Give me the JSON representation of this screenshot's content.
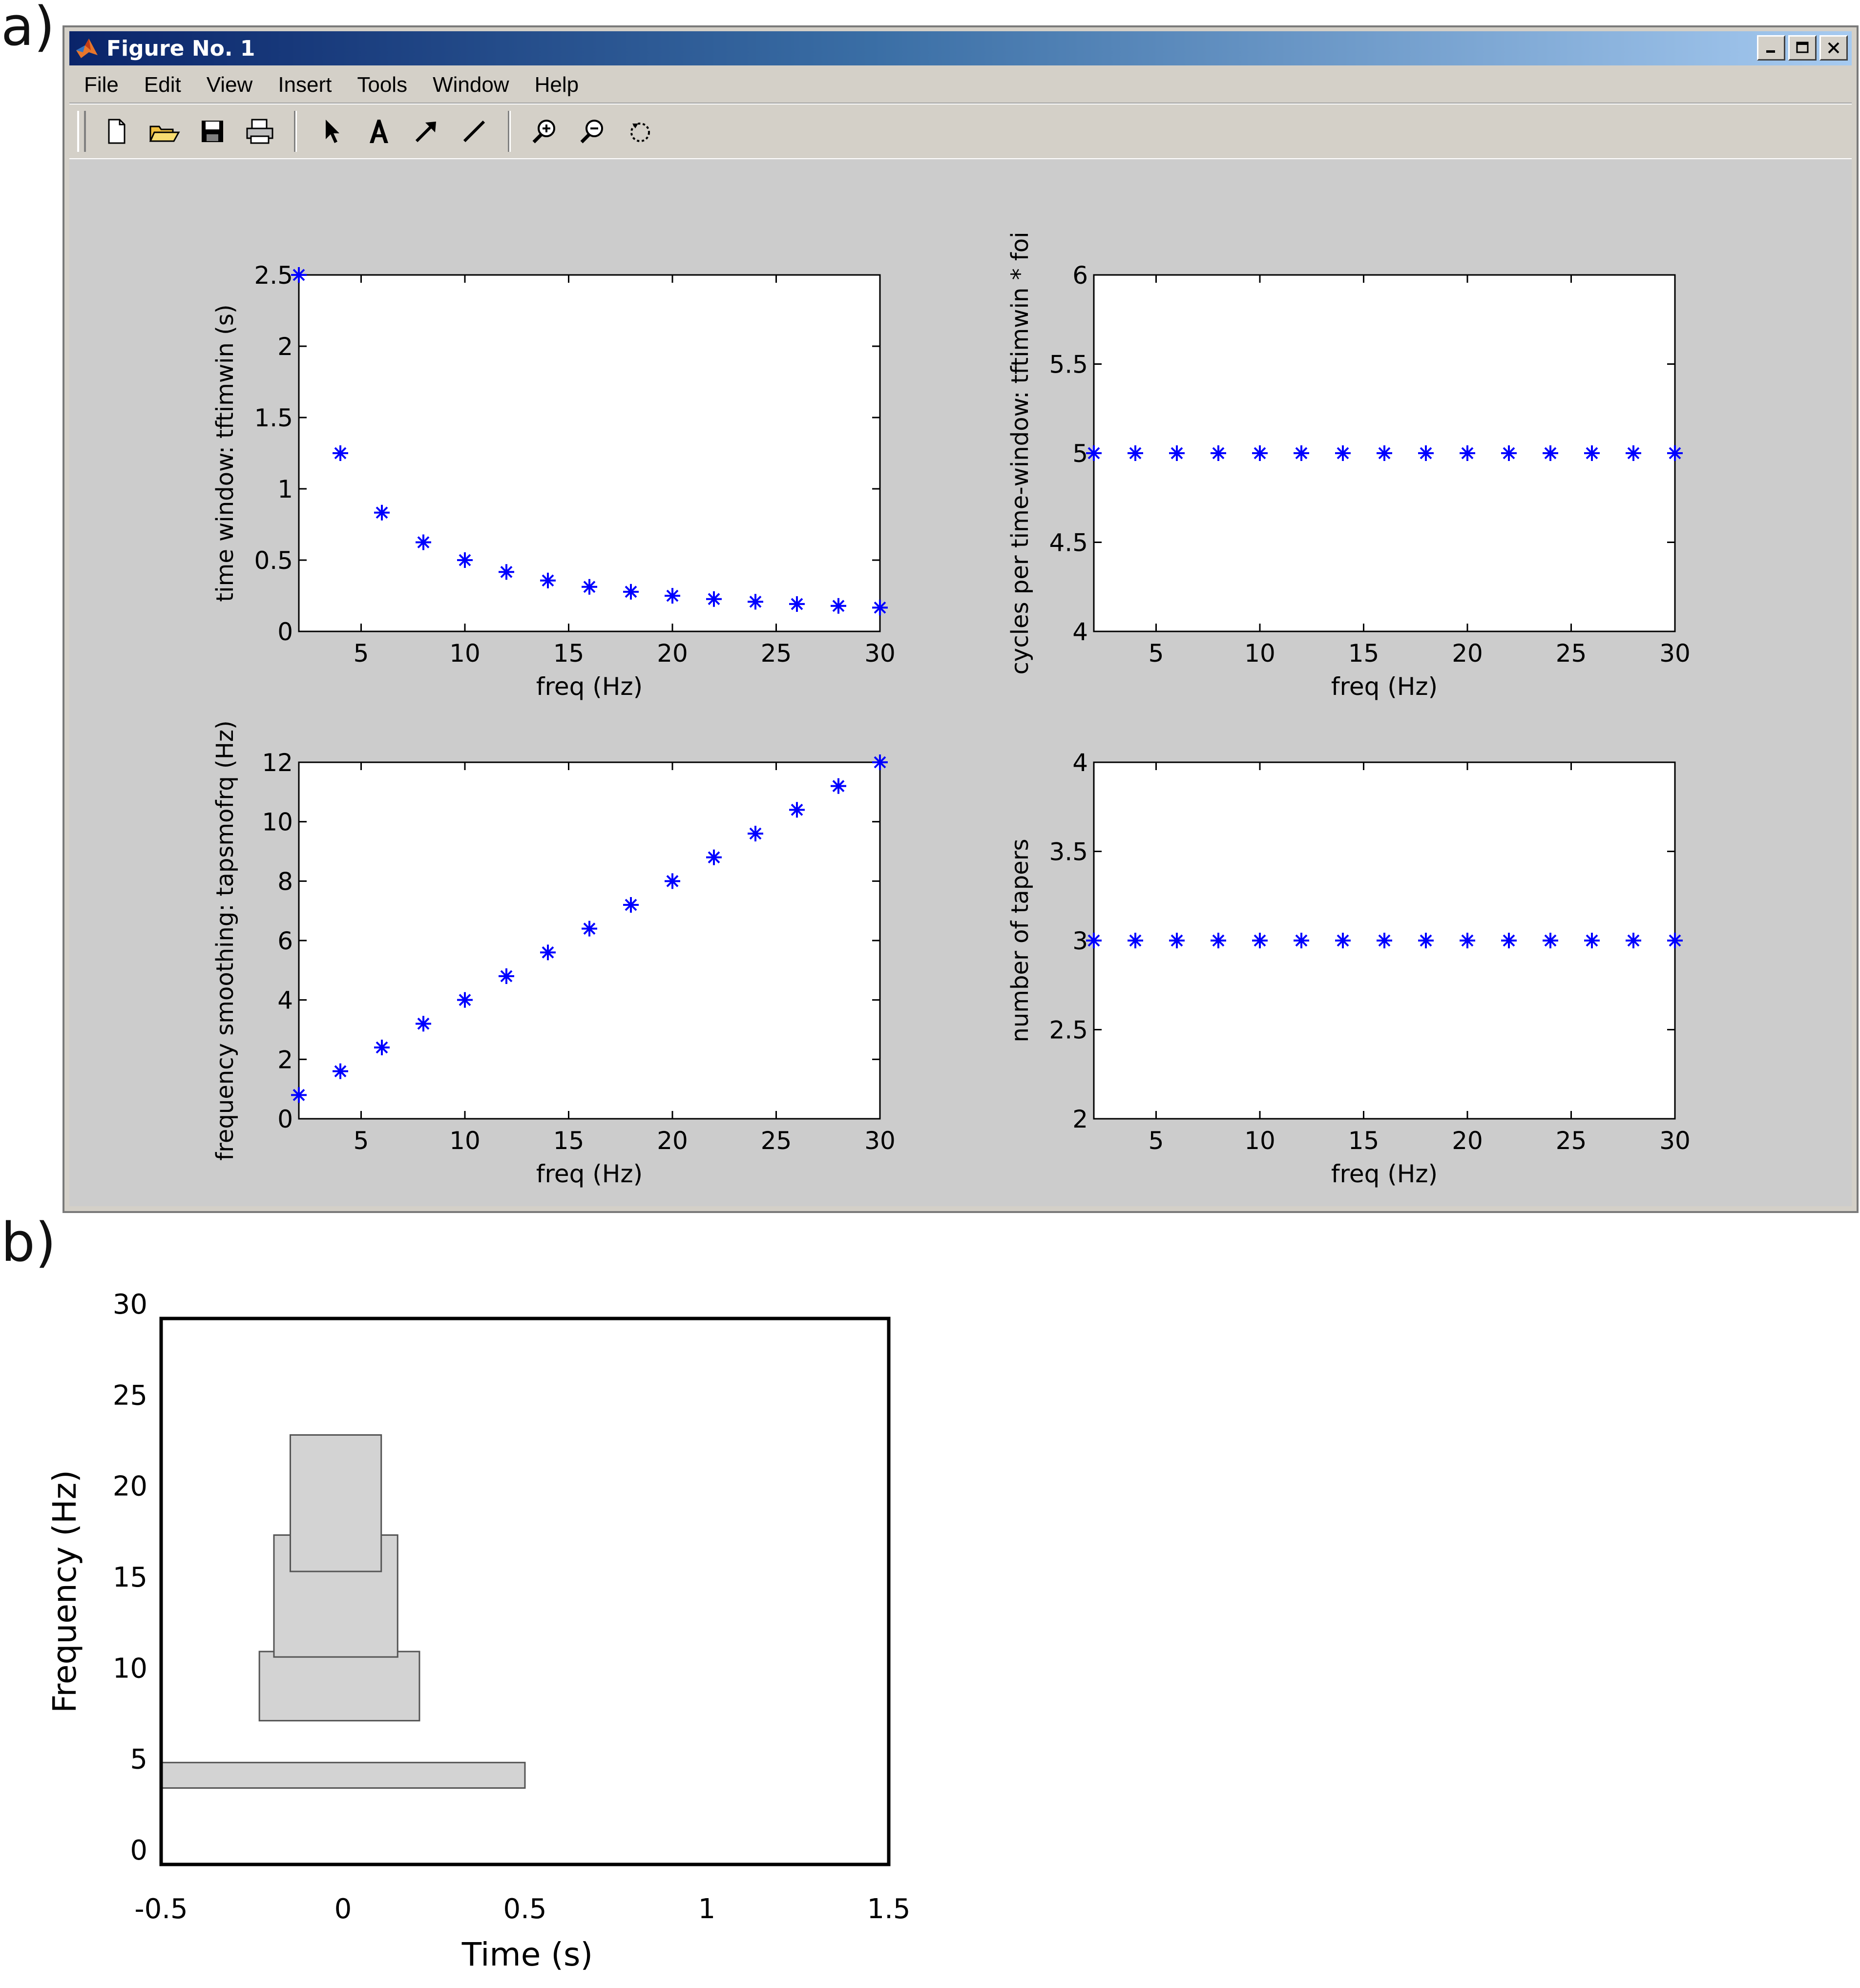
{
  "panel_labels": {
    "a": "a)",
    "b": "b)"
  },
  "window": {
    "title": "Figure No. 1",
    "menu": [
      "File",
      "Edit",
      "View",
      "Insert",
      "Tools",
      "Window",
      "Help"
    ],
    "toolbar_icons": [
      "new-file-icon",
      "open-folder-icon",
      "save-icon",
      "print-icon",
      "select-arrow-icon",
      "text-A-icon",
      "arrow-tool-icon",
      "line-tool-icon",
      "zoom-in-icon",
      "zoom-out-icon",
      "rotate-icon"
    ]
  },
  "chart_data": [
    {
      "id": "tl",
      "type": "scatter",
      "marker": "*",
      "color": "#0000ff",
      "x": [
        2,
        4,
        6,
        8,
        10,
        12,
        14,
        16,
        18,
        20,
        22,
        24,
        26,
        28,
        30
      ],
      "y": [
        2.5,
        1.25,
        0.833,
        0.625,
        0.5,
        0.417,
        0.357,
        0.3125,
        0.278,
        0.25,
        0.227,
        0.208,
        0.192,
        0.179,
        0.167
      ],
      "xlim": [
        2,
        30
      ],
      "ylim": [
        0,
        2.5
      ],
      "xticks": [
        5,
        10,
        15,
        20,
        25,
        30
      ],
      "yticks": [
        0,
        0.5,
        1,
        1.5,
        2,
        2.5
      ],
      "xticklabels": [
        "5",
        "10",
        "15",
        "20",
        "25",
        "30"
      ],
      "yticklabels": [
        "0",
        "0.5",
        "1",
        "1.5",
        "2",
        "2.5"
      ],
      "xlabel": "freq (Hz)",
      "ylabel": "time window: tftimwin (s)"
    },
    {
      "id": "tr",
      "type": "scatter",
      "marker": "*",
      "color": "#0000ff",
      "x": [
        2,
        4,
        6,
        8,
        10,
        12,
        14,
        16,
        18,
        20,
        22,
        24,
        26,
        28,
        30
      ],
      "y": [
        5,
        5,
        5,
        5,
        5,
        5,
        5,
        5,
        5,
        5,
        5,
        5,
        5,
        5,
        5
      ],
      "xlim": [
        2,
        30
      ],
      "ylim": [
        4,
        6
      ],
      "xticks": [
        5,
        10,
        15,
        20,
        25,
        30
      ],
      "yticks": [
        4,
        4.5,
        5,
        5.5,
        6
      ],
      "xticklabels": [
        "5",
        "10",
        "15",
        "20",
        "25",
        "30"
      ],
      "yticklabels": [
        "4",
        "4.5",
        "5",
        "5.5",
        "6"
      ],
      "xlabel": "freq (Hz)",
      "ylabel": "cycles per time-window: tftimwin * foi"
    },
    {
      "id": "bl",
      "type": "scatter",
      "marker": "*",
      "color": "#0000ff",
      "x": [
        2,
        4,
        6,
        8,
        10,
        12,
        14,
        16,
        18,
        20,
        22,
        24,
        26,
        28,
        30
      ],
      "y": [
        0.8,
        1.6,
        2.4,
        3.2,
        4,
        4.8,
        5.6,
        6.4,
        7.2,
        8,
        8.8,
        9.6,
        10.4,
        11.2,
        12
      ],
      "xlim": [
        2,
        30
      ],
      "ylim": [
        0,
        12
      ],
      "xticks": [
        5,
        10,
        15,
        20,
        25,
        30
      ],
      "yticks": [
        0,
        2,
        4,
        6,
        8,
        10,
        12
      ],
      "xticklabels": [
        "5",
        "10",
        "15",
        "20",
        "25",
        "30"
      ],
      "yticklabels": [
        "0",
        "2",
        "4",
        "6",
        "8",
        "10",
        "12"
      ],
      "xlabel": "freq (Hz)",
      "ylabel": "frequency smoothing: tapsmofrq (Hz)"
    },
    {
      "id": "br",
      "type": "scatter",
      "marker": "*",
      "color": "#0000ff",
      "x": [
        2,
        4,
        6,
        8,
        10,
        12,
        14,
        16,
        18,
        20,
        22,
        24,
        26,
        28,
        30
      ],
      "y": [
        3,
        3,
        3,
        3,
        3,
        3,
        3,
        3,
        3,
        3,
        3,
        3,
        3,
        3,
        3
      ],
      "xlim": [
        2,
        30
      ],
      "ylim": [
        2,
        4
      ],
      "xticks": [
        5,
        10,
        15,
        20,
        25,
        30
      ],
      "yticks": [
        2,
        2.5,
        3,
        3.5,
        4
      ],
      "xticklabels": [
        "5",
        "10",
        "15",
        "20",
        "25",
        "30"
      ],
      "yticklabels": [
        "2",
        "2.5",
        "3",
        "3.5",
        "4"
      ],
      "xlabel": "freq (Hz)",
      "ylabel": "number of tapers"
    },
    {
      "id": "b",
      "type": "rectangles",
      "xlim": [
        -0.5,
        1.5
      ],
      "ylim": [
        0,
        30
      ],
      "xticks": [
        -0.5,
        0,
        0.5,
        1,
        1.5
      ],
      "yticks": [
        0,
        5,
        10,
        15,
        20,
        25,
        30
      ],
      "xticklabels": [
        "-0.5",
        "0",
        "0.5",
        "1",
        "1.5"
      ],
      "yticklabels": [
        "0",
        "5",
        "10",
        "15",
        "20",
        "25",
        "30"
      ],
      "xlabel": "Time (s)",
      "ylabel": "Frequency (Hz)",
      "rects": [
        {
          "x0": -0.5,
          "x1": 0.5,
          "y0": 4.2,
          "y1": 5.6
        },
        {
          "x0": -0.23,
          "x1": 0.21,
          "y0": 7.9,
          "y1": 11.7
        },
        {
          "x0": -0.19,
          "x1": 0.15,
          "y0": 11.4,
          "y1": 18.1
        },
        {
          "x0": -0.145,
          "x1": 0.105,
          "y0": 16.1,
          "y1": 23.6
        }
      ],
      "fill": "#d3d3d3",
      "stroke": "#555555"
    }
  ]
}
